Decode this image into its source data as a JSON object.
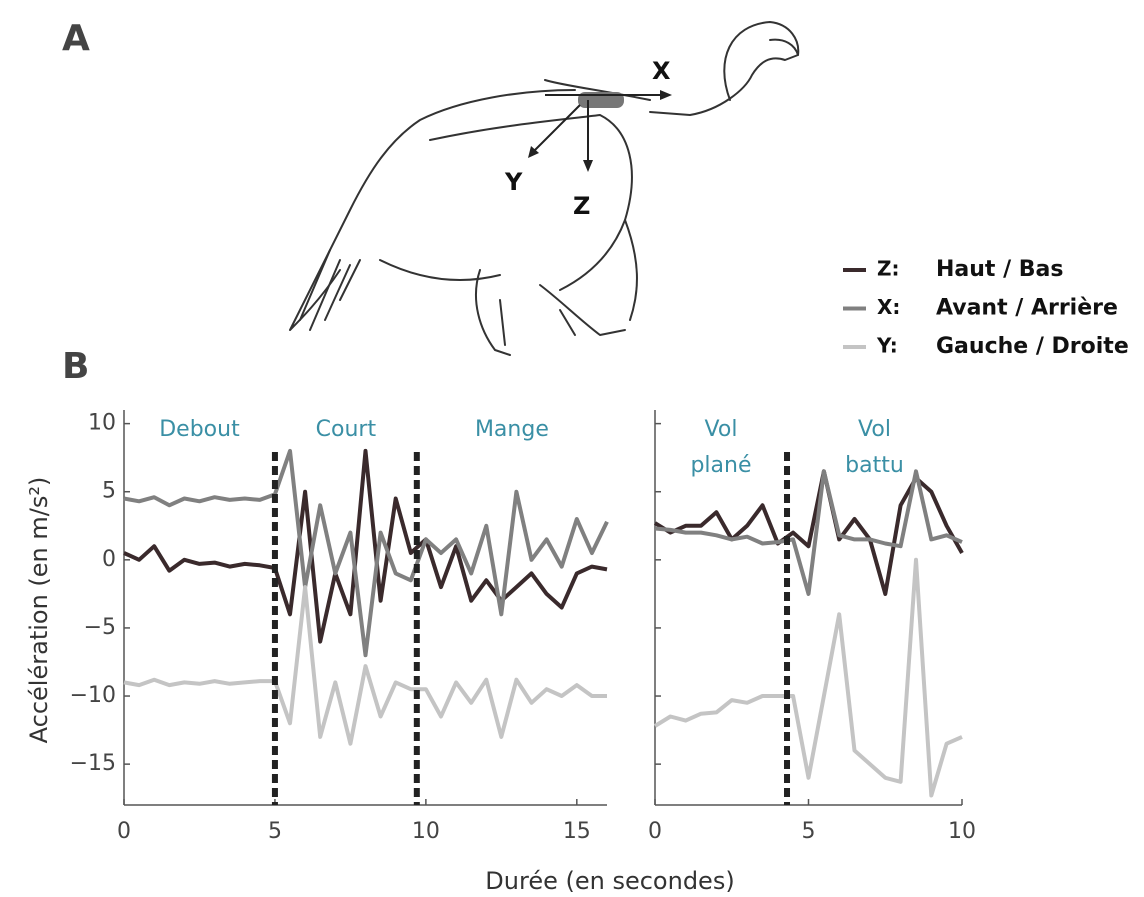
{
  "panel_labels": [
    "A",
    "B"
  ],
  "diagram": {
    "axis_labels": [
      "X",
      "Y",
      "Z"
    ]
  },
  "chart_data": [
    {
      "type": "line",
      "ylabel": "Accélération (en m/s²)",
      "xlabel": "Durée (en secondes)",
      "xlim": [
        0,
        16
      ],
      "ylim": [
        -18,
        11
      ],
      "xticks": [
        0,
        5,
        10,
        15
      ],
      "yticks": [
        {
          "value": -15,
          "label": "−15"
        },
        {
          "value": -10,
          "label": "−10"
        },
        {
          "value": -5,
          "label": "−5"
        },
        0,
        5,
        10
      ],
      "phases": [
        [
          "Debout"
        ],
        [
          "Court"
        ],
        [
          "Mange"
        ]
      ],
      "phase_bounds": [
        5,
        9.7
      ],
      "x": [
        0,
        0.5,
        1,
        1.5,
        2,
        2.5,
        3,
        3.5,
        4,
        4.5,
        5,
        5.5,
        6,
        6.5,
        7,
        7.5,
        8,
        8.5,
        9,
        9.5,
        10,
        10.5,
        11,
        11.5,
        12,
        12.5,
        13,
        13.5,
        14,
        14.5,
        15,
        15.5,
        16
      ],
      "series": [
        {
          "key": "Z:",
          "name": "Haut / Bas",
          "color": "#3a2a2c",
          "values": [
            0.5,
            0,
            1,
            -0.8,
            0,
            -0.3,
            -0.2,
            -0.5,
            -0.3,
            -0.4,
            -0.6,
            -4,
            5,
            -6,
            -1,
            -4,
            8,
            -3,
            4.5,
            0.5,
            1.5,
            -2,
            1,
            -3,
            -1.5,
            -3,
            -2,
            -1,
            -2.5,
            -3.5,
            -1,
            -0.5,
            -0.7
          ]
        },
        {
          "key": "X:",
          "name": "Avant / Arrière",
          "color": "#808080",
          "values": [
            4.5,
            4.3,
            4.6,
            4,
            4.5,
            4.3,
            4.6,
            4.4,
            4.5,
            4.4,
            4.8,
            8,
            -2,
            4,
            -1,
            2,
            -7,
            2,
            -1,
            -1.5,
            1.5,
            0.5,
            1.5,
            -1,
            2.5,
            -4,
            5,
            0,
            1.5,
            -0.5,
            3,
            0.5,
            2.8
          ]
        },
        {
          "key": "Y:",
          "name": "Gauche / Droite",
          "color": "#c4c4c4",
          "values": [
            -9,
            -9.2,
            -8.8,
            -9.2,
            -9,
            -9.1,
            -8.9,
            -9.1,
            -9,
            -8.9,
            -8.9,
            -12,
            -2,
            -13,
            -9,
            -13.5,
            -7.8,
            -11.5,
            -9,
            -9.5,
            -9.5,
            -11.5,
            -9,
            -10.5,
            -8.8,
            -13,
            -8.8,
            -10.5,
            -9.5,
            -10,
            -9.2,
            -10,
            -10
          ]
        }
      ]
    },
    {
      "type": "line",
      "xlim": [
        0,
        10
      ],
      "ylim": [
        -18,
        11
      ],
      "xticks": [
        0,
        5,
        10
      ],
      "yticks": [
        -15,
        -10,
        -5,
        0,
        5,
        10
      ],
      "phases": [
        [
          "Vol",
          "plané"
        ],
        [
          "Vol",
          "battu"
        ]
      ],
      "phase_bounds": [
        4.3
      ],
      "x": [
        0,
        0.5,
        1,
        1.5,
        2,
        2.5,
        3,
        3.5,
        4,
        4.5,
        5,
        5.5,
        6,
        6.5,
        7,
        7.5,
        8,
        8.5,
        9,
        9.5,
        10
      ],
      "series": [
        {
          "color": "#3a2a2c",
          "values": [
            2.7,
            2,
            2.5,
            2.5,
            3.5,
            1.5,
            2.5,
            4,
            1.2,
            2,
            1,
            6.5,
            1.5,
            3,
            1.5,
            -2.5,
            4,
            6,
            5,
            2.5,
            0.5
          ]
        },
        {
          "color": "#808080",
          "values": [
            2.3,
            2.2,
            2,
            2,
            1.8,
            1.5,
            1.7,
            1.2,
            1.3,
            1.5,
            -2.5,
            6.5,
            1.8,
            1.5,
            1.5,
            1.2,
            1,
            6.5,
            1.5,
            1.8,
            1.3
          ]
        },
        {
          "color": "#c4c4c4",
          "values": [
            -12.2,
            -11.5,
            -11.8,
            -11.3,
            -11.2,
            -10.3,
            -10.5,
            -10,
            -10,
            -10,
            -16,
            -10,
            -4,
            -14,
            -15,
            -16,
            -16.3,
            0,
            -17.3,
            -13.5,
            -13
          ]
        }
      ]
    }
  ]
}
